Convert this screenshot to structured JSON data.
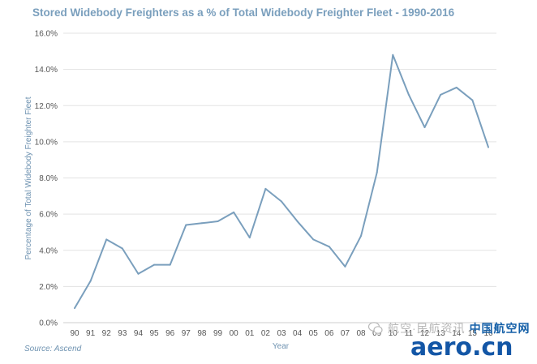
{
  "chart_data": {
    "type": "line",
    "title": "Stored Widebody Freighters as a % of Total Widebody Freighter Fleet - 1990-2016",
    "xlabel": "Year",
    "ylabel": "Percentage of Total Widebody Freighter Fleet",
    "categories": [
      "90",
      "91",
      "92",
      "93",
      "94",
      "95",
      "96",
      "97",
      "98",
      "99",
      "00",
      "01",
      "02",
      "03",
      "04",
      "05",
      "06",
      "07",
      "08",
      "09",
      "10",
      "11",
      "12",
      "13",
      "14",
      "15",
      "16"
    ],
    "values": [
      0.8,
      2.3,
      4.6,
      4.1,
      2.7,
      3.2,
      3.2,
      5.4,
      5.5,
      5.6,
      6.1,
      4.7,
      7.4,
      6.7,
      5.6,
      4.6,
      4.2,
      3.1,
      4.8,
      8.3,
      14.8,
      12.6,
      10.8,
      12.6,
      13.0,
      12.3,
      9.7
    ],
    "yticks": [
      "0.0%",
      "2.0%",
      "4.0%",
      "6.0%",
      "8.0%",
      "10.0%",
      "12.0%",
      "14.0%",
      "16.0%"
    ],
    "ylim": [
      0,
      16
    ],
    "grid": "horizontal",
    "line_color": "#7a9fbd",
    "source": "Source: Ascend"
  },
  "watermark": {
    "top_text": "航空·民航资讯",
    "site_cn": "中国航空网",
    "logo": "aero.cn"
  }
}
